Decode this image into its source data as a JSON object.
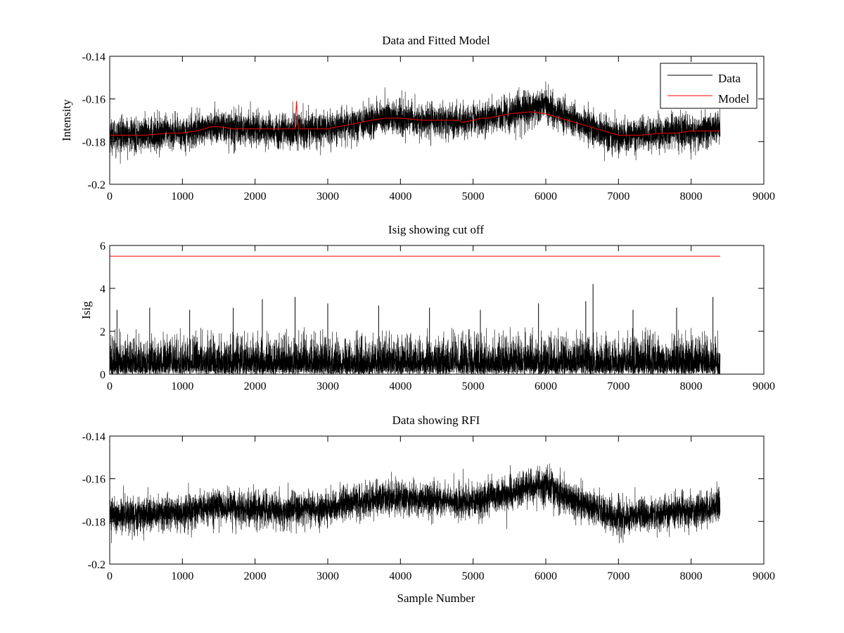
{
  "figure": {
    "background": "#ffffff",
    "colors": {
      "data": "#000000",
      "model": "#ff0000",
      "axes": "#000000"
    }
  },
  "chart_data": [
    {
      "type": "line",
      "title": "Data and Fitted Model",
      "xlabel": "",
      "ylabel": "Intensity",
      "xlim": [
        0,
        9000
      ],
      "ylim": [
        -0.2,
        -0.14
      ],
      "y_reversed": true,
      "x_ticks": [
        0,
        1000,
        2000,
        3000,
        4000,
        5000,
        6000,
        7000,
        8000,
        9000
      ],
      "y_ticks": [
        -0.14,
        -0.16,
        -0.18,
        -0.2
      ],
      "y_tick_labels": [
        "-0.14",
        "-0.16",
        "-0.18",
        "-0.2"
      ],
      "legend": {
        "placement": "top-right",
        "entries": [
          "Data",
          "Model"
        ]
      },
      "grid": false,
      "n_samples": 8400,
      "series": [
        {
          "name": "Data",
          "color": "#000000",
          "style": "noisy",
          "noise_sd": 0.0045,
          "baseline_x": [
            0,
            200,
            500,
            800,
            1000,
            1300,
            1500,
            1800,
            2000,
            2300,
            2500,
            2800,
            3000,
            3300,
            3600,
            3800,
            4000,
            4300,
            4600,
            4800,
            5000,
            5200,
            5500,
            5800,
            6000,
            6200,
            6400,
            6600,
            6800,
            7000,
            7300,
            7600,
            7800,
            8000,
            8200,
            8400
          ],
          "baseline_y": [
            -0.177,
            -0.177,
            -0.177,
            -0.176,
            -0.176,
            -0.174,
            -0.173,
            -0.174,
            -0.174,
            -0.175,
            -0.175,
            -0.174,
            -0.174,
            -0.172,
            -0.17,
            -0.169,
            -0.169,
            -0.17,
            -0.17,
            -0.171,
            -0.17,
            -0.169,
            -0.167,
            -0.164,
            -0.163,
            -0.167,
            -0.17,
            -0.173,
            -0.176,
            -0.178,
            -0.177,
            -0.176,
            -0.175,
            -0.176,
            -0.174,
            -0.173
          ]
        },
        {
          "name": "Model",
          "color": "#ff0000",
          "style": "smooth",
          "x": [
            0,
            200,
            500,
            800,
            1000,
            1200,
            1400,
            1500,
            1700,
            2000,
            2300,
            2550,
            2570,
            2580,
            2600,
            2800,
            3000,
            3300,
            3600,
            3800,
            4000,
            4300,
            4600,
            4800,
            4850,
            5000,
            5100,
            5200,
            5500,
            5800,
            6000,
            6200,
            6500,
            6800,
            7000,
            7300,
            7600,
            7800,
            8000,
            8200,
            8400
          ],
          "y": [
            -0.177,
            -0.177,
            -0.177,
            -0.176,
            -0.176,
            -0.175,
            -0.173,
            -0.173,
            -0.174,
            -0.174,
            -0.174,
            -0.174,
            -0.161,
            -0.168,
            -0.174,
            -0.174,
            -0.174,
            -0.172,
            -0.17,
            -0.169,
            -0.169,
            -0.17,
            -0.17,
            -0.17,
            -0.171,
            -0.17,
            -0.169,
            -0.169,
            -0.167,
            -0.166,
            -0.167,
            -0.169,
            -0.172,
            -0.175,
            -0.177,
            -0.177,
            -0.176,
            -0.176,
            -0.175,
            -0.175,
            -0.175
          ]
        }
      ]
    },
    {
      "type": "line",
      "title": "Isig showing cut off",
      "xlabel": "",
      "ylabel": "Isig",
      "xlim": [
        0,
        9000
      ],
      "ylim": [
        0,
        6
      ],
      "y_reversed": false,
      "x_ticks": [
        0,
        1000,
        2000,
        3000,
        4000,
        5000,
        6000,
        7000,
        8000,
        9000
      ],
      "y_ticks": [
        0,
        2,
        4,
        6
      ],
      "y_tick_labels": [
        "0",
        "2",
        "4",
        "6"
      ],
      "grid": false,
      "n_samples": 8400,
      "series": [
        {
          "name": "Isig",
          "color": "#000000",
          "style": "abs-noise",
          "typical_max": 2.2,
          "peak_x": [
            100,
            550,
            1100,
            1700,
            2100,
            2550,
            3000,
            3700,
            4400,
            5100,
            5900,
            6550,
            6650,
            7200,
            7800,
            8300
          ],
          "peak_y": [
            3.0,
            3.1,
            3.0,
            3.1,
            3.5,
            3.6,
            3.3,
            3.2,
            3.1,
            3.0,
            3.3,
            3.4,
            4.2,
            3.0,
            3.1,
            3.6
          ]
        },
        {
          "name": "Cut off",
          "color": "#ff0000",
          "style": "constant",
          "x": [
            0,
            8400
          ],
          "y": [
            5.5,
            5.5
          ]
        }
      ]
    },
    {
      "type": "line",
      "title": "Data showing RFI",
      "xlabel": "Sample Number",
      "ylabel": "",
      "xlim": [
        0,
        9000
      ],
      "ylim": [
        -0.2,
        -0.14
      ],
      "y_reversed": true,
      "x_ticks": [
        0,
        1000,
        2000,
        3000,
        4000,
        5000,
        6000,
        7000,
        8000,
        9000
      ],
      "y_ticks": [
        -0.14,
        -0.16,
        -0.18,
        -0.2
      ],
      "y_tick_labels": [
        "-0.14",
        "-0.16",
        "-0.18",
        "-0.2"
      ],
      "grid": false,
      "n_samples": 8400,
      "series": [
        {
          "name": "Data",
          "color": "#000000",
          "style": "noisy",
          "noise_sd": 0.0045,
          "baseline_x": [
            0,
            200,
            500,
            800,
            1000,
            1300,
            1500,
            1800,
            2000,
            2300,
            2500,
            2800,
            3000,
            3300,
            3600,
            3800,
            4000,
            4300,
            4600,
            4800,
            5000,
            5200,
            5500,
            5800,
            6000,
            6200,
            6400,
            6600,
            6800,
            7000,
            7300,
            7600,
            7800,
            8000,
            8200,
            8400
          ],
          "baseline_y": [
            -0.177,
            -0.177,
            -0.177,
            -0.176,
            -0.176,
            -0.174,
            -0.173,
            -0.174,
            -0.174,
            -0.175,
            -0.175,
            -0.174,
            -0.174,
            -0.172,
            -0.17,
            -0.169,
            -0.169,
            -0.17,
            -0.17,
            -0.171,
            -0.17,
            -0.169,
            -0.167,
            -0.164,
            -0.163,
            -0.167,
            -0.17,
            -0.173,
            -0.176,
            -0.178,
            -0.177,
            -0.176,
            -0.175,
            -0.176,
            -0.174,
            -0.173
          ]
        }
      ]
    }
  ]
}
